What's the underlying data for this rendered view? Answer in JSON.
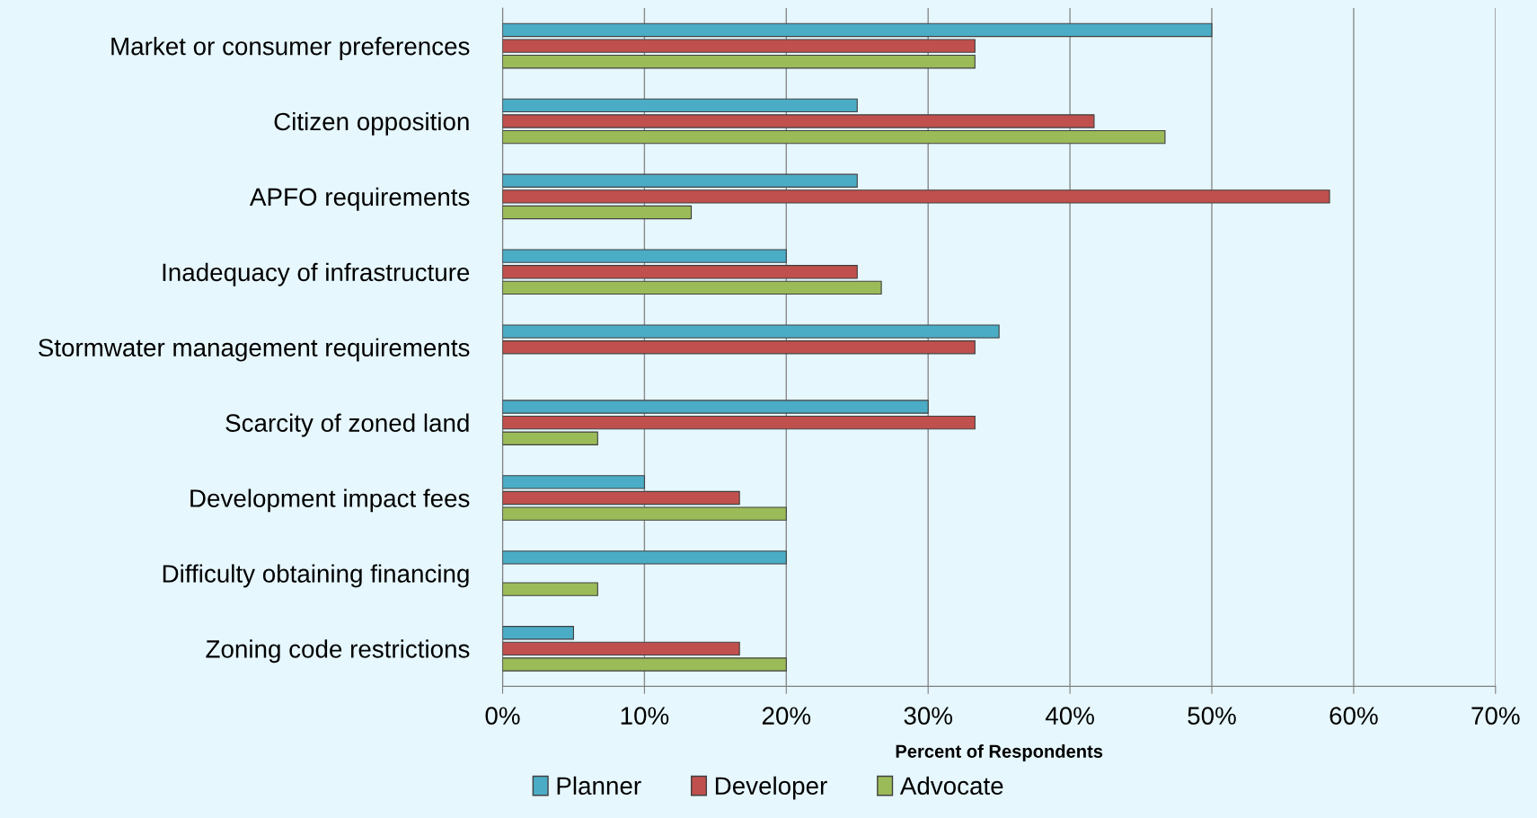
{
  "chart_data": {
    "type": "bar",
    "orientation": "horizontal",
    "xlabel": "Percent of Respondents",
    "categories": [
      "Market or consumer preferences",
      "Citizen opposition",
      "APFO requirements",
      "Inadequacy of infrastructure",
      "Stormwater management requirements",
      "Scarcity of zoned land",
      "Development impact fees",
      "Difficulty obtaining financing",
      "Zoning code restrictions"
    ],
    "series": [
      {
        "name": "Planner",
        "color": "#4bacc6",
        "values": [
          50,
          25,
          25,
          20,
          35,
          30,
          10,
          20,
          5
        ]
      },
      {
        "name": "Developer",
        "color": "#c0504d",
        "values": [
          33.3,
          41.7,
          58.3,
          25,
          33.3,
          33.3,
          16.7,
          null,
          16.7
        ]
      },
      {
        "name": "Advocate",
        "color": "#9bbb59",
        "values": [
          33.3,
          46.7,
          13.3,
          26.7,
          null,
          6.7,
          20,
          6.7,
          20
        ]
      }
    ],
    "xlim": [
      0,
      70
    ],
    "xticks": [
      {
        "value": 0,
        "label": "0%"
      },
      {
        "value": 10,
        "label": "10%"
      },
      {
        "value": 20,
        "label": "20%"
      },
      {
        "value": 30,
        "label": "30%"
      },
      {
        "value": 40,
        "label": "40%"
      },
      {
        "value": 50,
        "label": "50%"
      },
      {
        "value": 60,
        "label": "60%"
      },
      {
        "value": 70,
        "label": "70%"
      }
    ],
    "grid": "x",
    "legend": "bottom"
  }
}
